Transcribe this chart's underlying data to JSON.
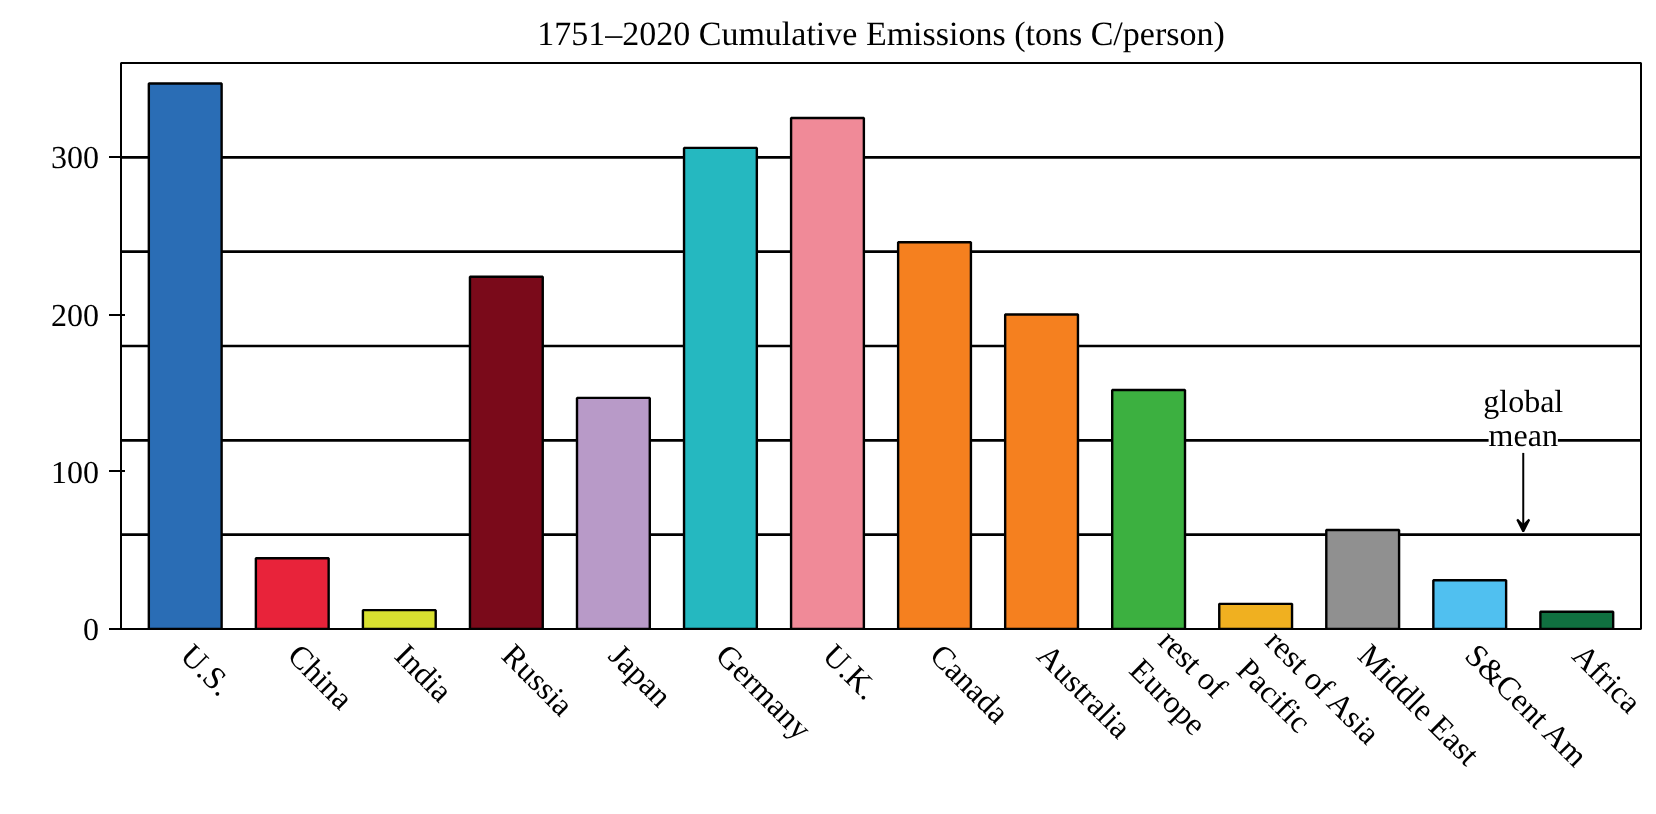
{
  "chart_data": {
    "type": "bar",
    "title": "1751–2020 Cumulative Emissions (tons C/person)",
    "categories": [
      "U.S.",
      "China",
      "India",
      "Russia",
      "Japan",
      "Germany",
      "U.K.",
      "Canada",
      "Australia",
      "rest of\nEurope",
      "rest of Asia\nPacific",
      "Middle East",
      "S&Cent Am",
      "Africa"
    ],
    "values": [
      347,
      45,
      12,
      224,
      147,
      306,
      325,
      246,
      200,
      152,
      16,
      63,
      31,
      11
    ],
    "colors": [
      "#2a6db5",
      "#e8233a",
      "#d8e030",
      "#7a0a1a",
      "#b89ac8",
      "#25b8c0",
      "#f08a98",
      "#f5801f",
      "#f5801f",
      "#3cb040",
      "#f0b020",
      "#909090",
      "#50c0f0",
      "#107040"
    ],
    "ylim": [
      0,
      360
    ],
    "yticks": [
      0,
      100,
      200,
      300
    ],
    "grid": false,
    "ref_lines": [
      {
        "axis": "y",
        "value": 60,
        "label": "global mean"
      },
      {
        "axis": "y",
        "value": 120,
        "label": null
      },
      {
        "axis": "y",
        "value": 180,
        "label": null
      },
      {
        "axis": "y",
        "value": 240,
        "label": null
      },
      {
        "axis": "y",
        "value": 300,
        "label": null
      }
    ]
  }
}
